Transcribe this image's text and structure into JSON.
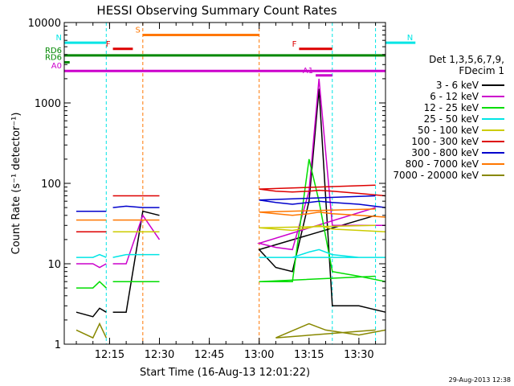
{
  "chart_data": {
    "type": "line",
    "title": "HESSI Observing Summary Count Rates",
    "xlabel": "Start Time (16-Aug-13 12:01:22)",
    "ylabel": "Count Rate (s⁻¹ detector⁻¹)",
    "yscale": "log",
    "ylim": [
      1,
      10000
    ],
    "xlim_minutes_label": "12:01:22 to 13:38",
    "x_ticks": [
      "12:15",
      "12:30",
      "12:45",
      "13:00",
      "13:15",
      "13:30"
    ],
    "y_ticks": [
      "1",
      "10",
      "100",
      "1000",
      "10000"
    ],
    "timestamp": "29-Aug-2013 12:38",
    "legend": {
      "title_line1": "Det 1,3,5,6,7,9,",
      "title_line2": "FDecim 1",
      "placement": "right"
    },
    "series": [
      {
        "name": "3 - 6 keV",
        "color": "#000000",
        "segments": [
          {
            "t": [
              12.05,
              12.1,
              12.12,
              12.14
            ],
            "y": [
              2.5,
              2.2,
              2.8,
              2.5
            ]
          },
          {
            "t": [
              12.16,
              12.2,
              12.25,
              12.3
            ],
            "y": [
              2.5,
              2.5,
              45,
              40
            ]
          },
          {
            "t": [
              12.95,
              13.0,
              13.05,
              13.1,
              13.15,
              13.18,
              13.22,
              13.3,
              13.38
            ],
            "y": [
              40,
              15,
              9,
              8,
              60,
              1500,
              3,
              3,
              2.5
            ]
          }
        ]
      },
      {
        "name": "6 - 12 keV",
        "color": "#cc00cc",
        "segments": [
          {
            "t": [
              12.05,
              12.1,
              12.12,
              12.14
            ],
            "y": [
              10,
              10,
              9,
              10
            ]
          },
          {
            "t": [
              12.16,
              12.2,
              12.25,
              12.3
            ],
            "y": [
              10,
              10,
              40,
              20
            ]
          },
          {
            "t": [
              12.95,
              13.0,
              13.05,
              13.1,
              13.15,
              13.18,
              13.22,
              13.3,
              13.38
            ],
            "y": [
              50,
              18,
              16,
              15,
              80,
              2000,
              30,
              30,
              30
            ]
          }
        ]
      },
      {
        "name": "12 - 25 keV",
        "color": "#00dd00",
        "segments": [
          {
            "t": [
              12.05,
              12.1,
              12.12,
              12.14
            ],
            "y": [
              5,
              5,
              6,
              5
            ]
          },
          {
            "t": [
              12.16,
              12.2,
              12.25,
              12.3
            ],
            "y": [
              6,
              6,
              6,
              6
            ]
          },
          {
            "t": [
              12.95,
              13.0,
              13.05,
              13.1,
              13.15,
              13.18,
              13.22,
              13.3,
              13.38
            ],
            "y": [
              7,
              6,
              6,
              6,
              200,
              60,
              8,
              7,
              6
            ]
          }
        ]
      },
      {
        "name": "25 - 50 keV",
        "color": "#00e5e5",
        "segments": [
          {
            "t": [
              12.05,
              12.1,
              12.12,
              12.14
            ],
            "y": [
              12,
              12,
              13,
              12
            ]
          },
          {
            "t": [
              12.16,
              12.2,
              12.25,
              12.3
            ],
            "y": [
              12,
              13,
              13,
              13
            ]
          },
          {
            "t": [
              12.95,
              13.0,
              13.05,
              13.1,
              13.15,
              13.18,
              13.22,
              13.3,
              13.38
            ],
            "y": [
              12,
              12,
              12,
              12,
              14,
              15,
              13,
              12,
              12
            ]
          }
        ]
      },
      {
        "name": "50 - 100 keV",
        "color": "#cccc00",
        "segments": [
          {
            "t": [
              12.05,
              12.1,
              12.12,
              12.14
            ],
            "y": [
              25,
              25,
              25,
              25
            ]
          },
          {
            "t": [
              12.16,
              12.2,
              12.25,
              12.3
            ],
            "y": [
              25,
              25,
              25,
              25
            ]
          },
          {
            "t": [
              12.95,
              13.0,
              13.05,
              13.1,
              13.15,
              13.18,
              13.22,
              13.3,
              13.38
            ],
            "y": [
              30,
              28,
              27,
              26,
              28,
              30,
              27,
              26,
              25
            ]
          }
        ]
      },
      {
        "name": "100 - 300 keV",
        "color": "#dd0000",
        "segments": [
          {
            "t": [
              12.05,
              12.1,
              12.12,
              12.14
            ],
            "y": [
              25,
              25,
              25,
              25
            ]
          },
          {
            "t": [
              12.16,
              12.2,
              12.25,
              12.3
            ],
            "y": [
              70,
              70,
              70,
              70
            ]
          },
          {
            "t": [
              12.95,
              13.0,
              13.05,
              13.1,
              13.15,
              13.18,
              13.22,
              13.3,
              13.38
            ],
            "y": [
              95,
              85,
              80,
              78,
              80,
              82,
              80,
              75,
              70
            ]
          }
        ]
      },
      {
        "name": "300 - 800 keV",
        "color": "#0000cc",
        "segments": [
          {
            "t": [
              12.05,
              12.1,
              12.12,
              12.14
            ],
            "y": [
              45,
              45,
              45,
              45
            ]
          },
          {
            "t": [
              12.16,
              12.2,
              12.25,
              12.3
            ],
            "y": [
              50,
              52,
              50,
              50
            ]
          },
          {
            "t": [
              12.95,
              13.0,
              13.05,
              13.1,
              13.15,
              13.18,
              13.22,
              13.3,
              13.38
            ],
            "y": [
              70,
              62,
              58,
              55,
              58,
              60,
              58,
              55,
              50
            ]
          }
        ]
      },
      {
        "name": "800 - 7000 keV",
        "color": "#ff7700",
        "segments": [
          {
            "t": [
              12.05,
              12.1,
              12.12,
              12.14
            ],
            "y": [
              35,
              35,
              35,
              35
            ]
          },
          {
            "t": [
              12.16,
              12.2,
              12.25,
              12.3
            ],
            "y": [
              35,
              35,
              35,
              35
            ]
          },
          {
            "t": [
              12.95,
              13.0,
              13.05,
              13.1,
              13.15,
              13.18,
              13.22,
              13.3,
              13.38
            ],
            "y": [
              48,
              44,
              42,
              40,
              42,
              44,
              42,
              40,
              38
            ]
          }
        ]
      },
      {
        "name": "7000 - 20000 keV",
        "color": "#888800",
        "segments": [
          {
            "t": [
              12.05,
              12.1,
              12.12,
              12.14
            ],
            "y": [
              1.5,
              1.2,
              1.8,
              1.2
            ]
          },
          {
            "t": [
              12.95,
              13.05,
              13.15,
              13.2,
              13.3,
              13.38
            ],
            "y": [
              1.5,
              1.2,
              1.8,
              1.5,
              1.3,
              1.5
            ]
          }
        ]
      }
    ],
    "flags": [
      {
        "label": "RD6",
        "color": "#008800",
        "t_start": 12.0,
        "t_end": 13.65,
        "y": 3900
      },
      {
        "label": "RD6",
        "color": "#008800",
        "t_start": 12.0,
        "t_end": 12.03,
        "y": 3200
      },
      {
        "label": "N",
        "color": "#00e5e5",
        "t_start": 12.0,
        "t_end": 12.14,
        "y": 5600
      },
      {
        "label": "N",
        "color": "#00e5e5",
        "t_start": 13.47,
        "t_end": 13.65,
        "y": 5600
      },
      {
        "label": "F",
        "color": "#dd0000",
        "t_start": 12.16,
        "t_end": 12.22,
        "y": 4700
      },
      {
        "label": "F",
        "color": "#dd0000",
        "t_start": 13.12,
        "t_end": 13.22,
        "y": 4700
      },
      {
        "label": "S",
        "color": "#ff7700",
        "t_start": 12.25,
        "t_end": 12.6,
        "y": 7000
      },
      {
        "label": "A1",
        "color": "#cc00cc",
        "t_start": 13.17,
        "t_end": 13.22,
        "y": 2200
      },
      {
        "label": "A0",
        "color": "#cc00cc",
        "t_start": 12.0,
        "t_end": 13.65,
        "y": 2500
      }
    ]
  }
}
